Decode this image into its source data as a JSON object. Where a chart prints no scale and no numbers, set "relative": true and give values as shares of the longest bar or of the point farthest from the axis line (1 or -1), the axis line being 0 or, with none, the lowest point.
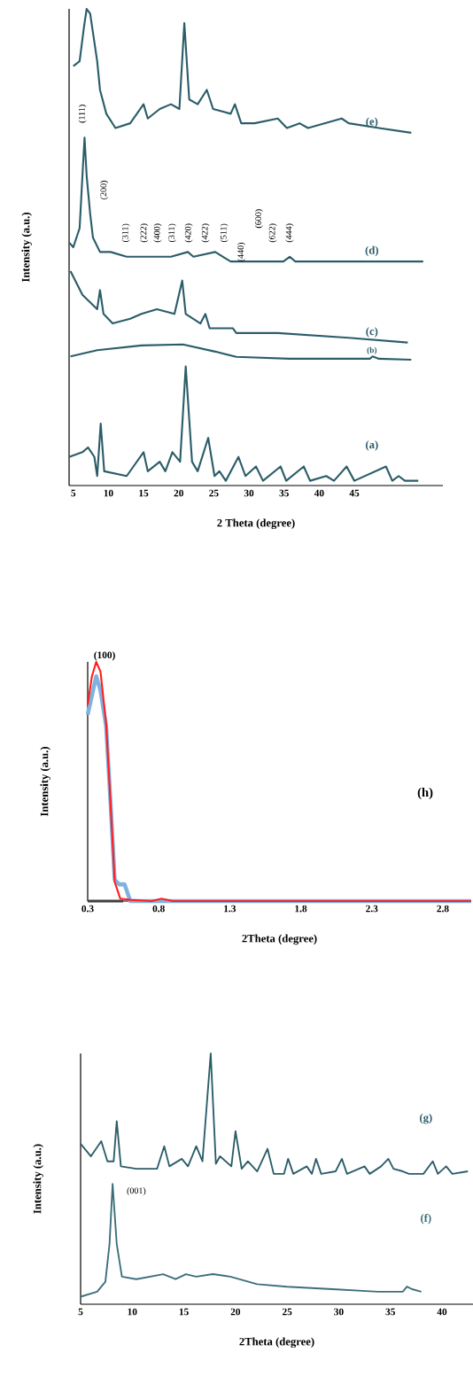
{
  "chart_data": [
    {
      "type": "line",
      "relative": true,
      "xlabel": "2 Theta (degree)",
      "ylabel": "Intensity (a.u.)",
      "xlim": [
        4.4,
        57.6
      ],
      "xticks": [
        5,
        10,
        15,
        20,
        25,
        30,
        35,
        40,
        45
      ],
      "series": [
        {
          "name": "(e)",
          "color": "#2b5d69",
          "x": [
            5.0,
            5.9,
            6.5,
            6.9,
            7.4,
            7.8,
            8.4,
            8.8,
            9.7,
            11.0,
            13.1,
            15.0,
            15.6,
            17.3,
            18.9,
            20.1,
            20.8,
            21.5,
            22.7,
            24.0,
            24.9,
            27.4,
            28.0,
            28.9,
            30.8,
            34.1,
            35.4,
            37.2,
            38.4,
            43.2,
            44.2,
            48.5,
            53.1
          ],
          "values": [
            0.88,
            0.89,
            0.96,
            1.0,
            0.99,
            0.95,
            0.89,
            0.83,
            0.78,
            0.75,
            0.76,
            0.8,
            0.77,
            0.79,
            0.8,
            0.79,
            0.97,
            0.81,
            0.8,
            0.83,
            0.79,
            0.78,
            0.8,
            0.76,
            0.76,
            0.77,
            0.75,
            0.76,
            0.75,
            0.77,
            0.76,
            0.75,
            0.74
          ]
        },
        {
          "name": "(d)",
          "color": "#2b5d69",
          "x": [
            4.4,
            5.0,
            5.9,
            6.3,
            6.6,
            6.9,
            7.4,
            7.8,
            8.8,
            10.3,
            12.6,
            14.7,
            18.9,
            21.3,
            22.1,
            25.2,
            27.4,
            34.9,
            35.8,
            36.6,
            41.5,
            54.8
          ],
          "values": [
            0.51,
            0.5,
            0.54,
            0.65,
            0.73,
            0.65,
            0.57,
            0.52,
            0.49,
            0.49,
            0.48,
            0.48,
            0.48,
            0.49,
            0.48,
            0.49,
            0.47,
            0.47,
            0.48,
            0.47,
            0.47,
            0.47
          ]
        },
        {
          "name": "(c)",
          "color": "#2b5d69",
          "x": [
            4.6,
            6.3,
            8.4,
            8.8,
            9.3,
            10.6,
            13.1,
            14.7,
            16.9,
            19.4,
            20.5,
            21.0,
            23.1,
            23.8,
            24.4,
            27.7,
            28.2,
            34.1,
            44.2,
            52.6
          ],
          "values": [
            0.45,
            0.4,
            0.37,
            0.41,
            0.36,
            0.34,
            0.35,
            0.36,
            0.37,
            0.36,
            0.43,
            0.36,
            0.34,
            0.36,
            0.33,
            0.33,
            0.32,
            0.32,
            0.31,
            0.3
          ]
        },
        {
          "name": "(b)",
          "color": "#2b5d69",
          "x": [
            4.6,
            8.4,
            14.7,
            20.6,
            25.2,
            28.2,
            35.8,
            47.2,
            47.6,
            48.5,
            53.1
          ],
          "values": [
            0.271,
            0.284,
            0.294,
            0.296,
            0.281,
            0.27,
            0.266,
            0.266,
            0.271,
            0.266,
            0.264
          ]
        },
        {
          "name": "(a)",
          "color": "#2b5d69",
          "x": [
            4.4,
            6.3,
            7.1,
            8.0,
            8.4,
            8.9,
            9.4,
            12.6,
            15.0,
            15.6,
            17.3,
            18.1,
            19.1,
            20.2,
            21.0,
            21.9,
            22.7,
            24.2,
            25.1,
            25.8,
            26.7,
            28.5,
            29.5,
            31.0,
            32.0,
            34.5,
            35.3,
            37.8,
            38.7,
            41.0,
            42.1,
            43.9,
            45.0,
            49.5,
            50.4,
            51.3,
            52.2,
            54.1
          ],
          "values": [
            0.06,
            0.07,
            0.08,
            0.06,
            0.02,
            0.13,
            0.03,
            0.02,
            0.07,
            0.03,
            0.05,
            0.03,
            0.07,
            0.05,
            0.25,
            0.05,
            0.03,
            0.1,
            0.02,
            0.03,
            0.01,
            0.06,
            0.02,
            0.04,
            0.01,
            0.04,
            0.01,
            0.04,
            0.01,
            0.02,
            0.01,
            0.04,
            0.01,
            0.04,
            0.01,
            0.02,
            0.01,
            0.01
          ]
        }
      ],
      "annotations": [
        "(111)",
        "(200)",
        "(311)",
        "(222)",
        "(400)",
        "(311)",
        "(420)",
        "(422)",
        "(511)",
        "(440)",
        "(600)",
        "(622)",
        "(444)"
      ]
    },
    {
      "type": "line",
      "relative": true,
      "xlabel": "2Theta (degree)",
      "ylabel": "Intensity (a.u.)",
      "xlim": [
        0.3,
        3.0
      ],
      "xticks": [
        0.3,
        0.8,
        1.3,
        1.8,
        2.3,
        2.8
      ],
      "series": [
        {
          "color": "#404040",
          "x": [
            0.3,
            0.55
          ],
          "values": [
            0,
            0
          ]
        },
        {
          "color": "#7fb2e0",
          "x": [
            0.3,
            0.36,
            0.39,
            0.43,
            0.46,
            0.49,
            0.52,
            0.56,
            0.6,
            3.0
          ],
          "values": [
            0.78,
            0.94,
            0.88,
            0.73,
            0.42,
            0.09,
            0.07,
            0.07,
            0,
            0
          ]
        },
        {
          "color": "#ff1f1f",
          "x": [
            0.3,
            0.33,
            0.36,
            0.39,
            0.43,
            0.46,
            0.49,
            0.53,
            0.6,
            0.75,
            0.82,
            0.9,
            3.0
          ],
          "values": [
            0.82,
            0.94,
            1.0,
            0.96,
            0.74,
            0.42,
            0.08,
            0.01,
            0.005,
            0,
            0.01,
            0,
            0
          ]
        }
      ],
      "annotations": [
        "(100)",
        "(h)"
      ]
    },
    {
      "type": "line",
      "relative": true,
      "xlabel": "2Theta (degree)",
      "ylabel": "Intensity (a.u.)",
      "xlim": [
        5,
        43
      ],
      "xticks": [
        5,
        10,
        15,
        20,
        25,
        30,
        35,
        40
      ],
      "series": [
        {
          "name": "(g)",
          "color": "#2b5d69",
          "x": [
            5.0,
            6.0,
            7.0,
            7.6,
            8.2,
            8.5,
            8.9,
            10.4,
            12.4,
            13.1,
            13.6,
            14.8,
            15.4,
            16.2,
            16.8,
            17.6,
            18.1,
            18.5,
            19.6,
            20.0,
            20.6,
            21.2,
            22.1,
            23.1,
            23.7,
            24.7,
            25.1,
            25.6,
            26.9,
            27.4,
            27.8,
            28.3,
            29.7,
            30.3,
            30.8,
            32.5,
            33.0,
            34.1,
            34.8,
            35.3,
            36.2,
            36.8,
            38.2,
            39.1,
            39.6,
            40.4,
            41.0,
            42.5
          ],
          "values": [
            0.64,
            0.59,
            0.65,
            0.57,
            0.57,
            0.73,
            0.55,
            0.54,
            0.54,
            0.63,
            0.55,
            0.58,
            0.55,
            0.63,
            0.57,
            1.0,
            0.56,
            0.59,
            0.55,
            0.69,
            0.54,
            0.57,
            0.53,
            0.62,
            0.52,
            0.52,
            0.58,
            0.52,
            0.55,
            0.52,
            0.58,
            0.52,
            0.53,
            0.58,
            0.52,
            0.55,
            0.52,
            0.55,
            0.58,
            0.54,
            0.53,
            0.52,
            0.52,
            0.57,
            0.52,
            0.55,
            0.52,
            0.53
          ]
        },
        {
          "name": "(f)",
          "color": "#3d6f7a",
          "x": [
            5.0,
            6.6,
            7.4,
            7.8,
            8.1,
            8.5,
            9.0,
            10.4,
            13.0,
            14.2,
            15.2,
            16.2,
            17.8,
            19.5,
            22.1,
            25.0,
            29.4,
            33.8,
            36.2,
            36.6,
            37.1,
            38.0
          ],
          "values": [
            0.03,
            0.05,
            0.09,
            0.24,
            0.48,
            0.24,
            0.11,
            0.1,
            0.12,
            0.1,
            0.12,
            0.11,
            0.12,
            0.11,
            0.08,
            0.07,
            0.06,
            0.05,
            0.05,
            0.07,
            0.06,
            0.05
          ]
        }
      ],
      "annotations": [
        "(001)"
      ]
    }
  ]
}
